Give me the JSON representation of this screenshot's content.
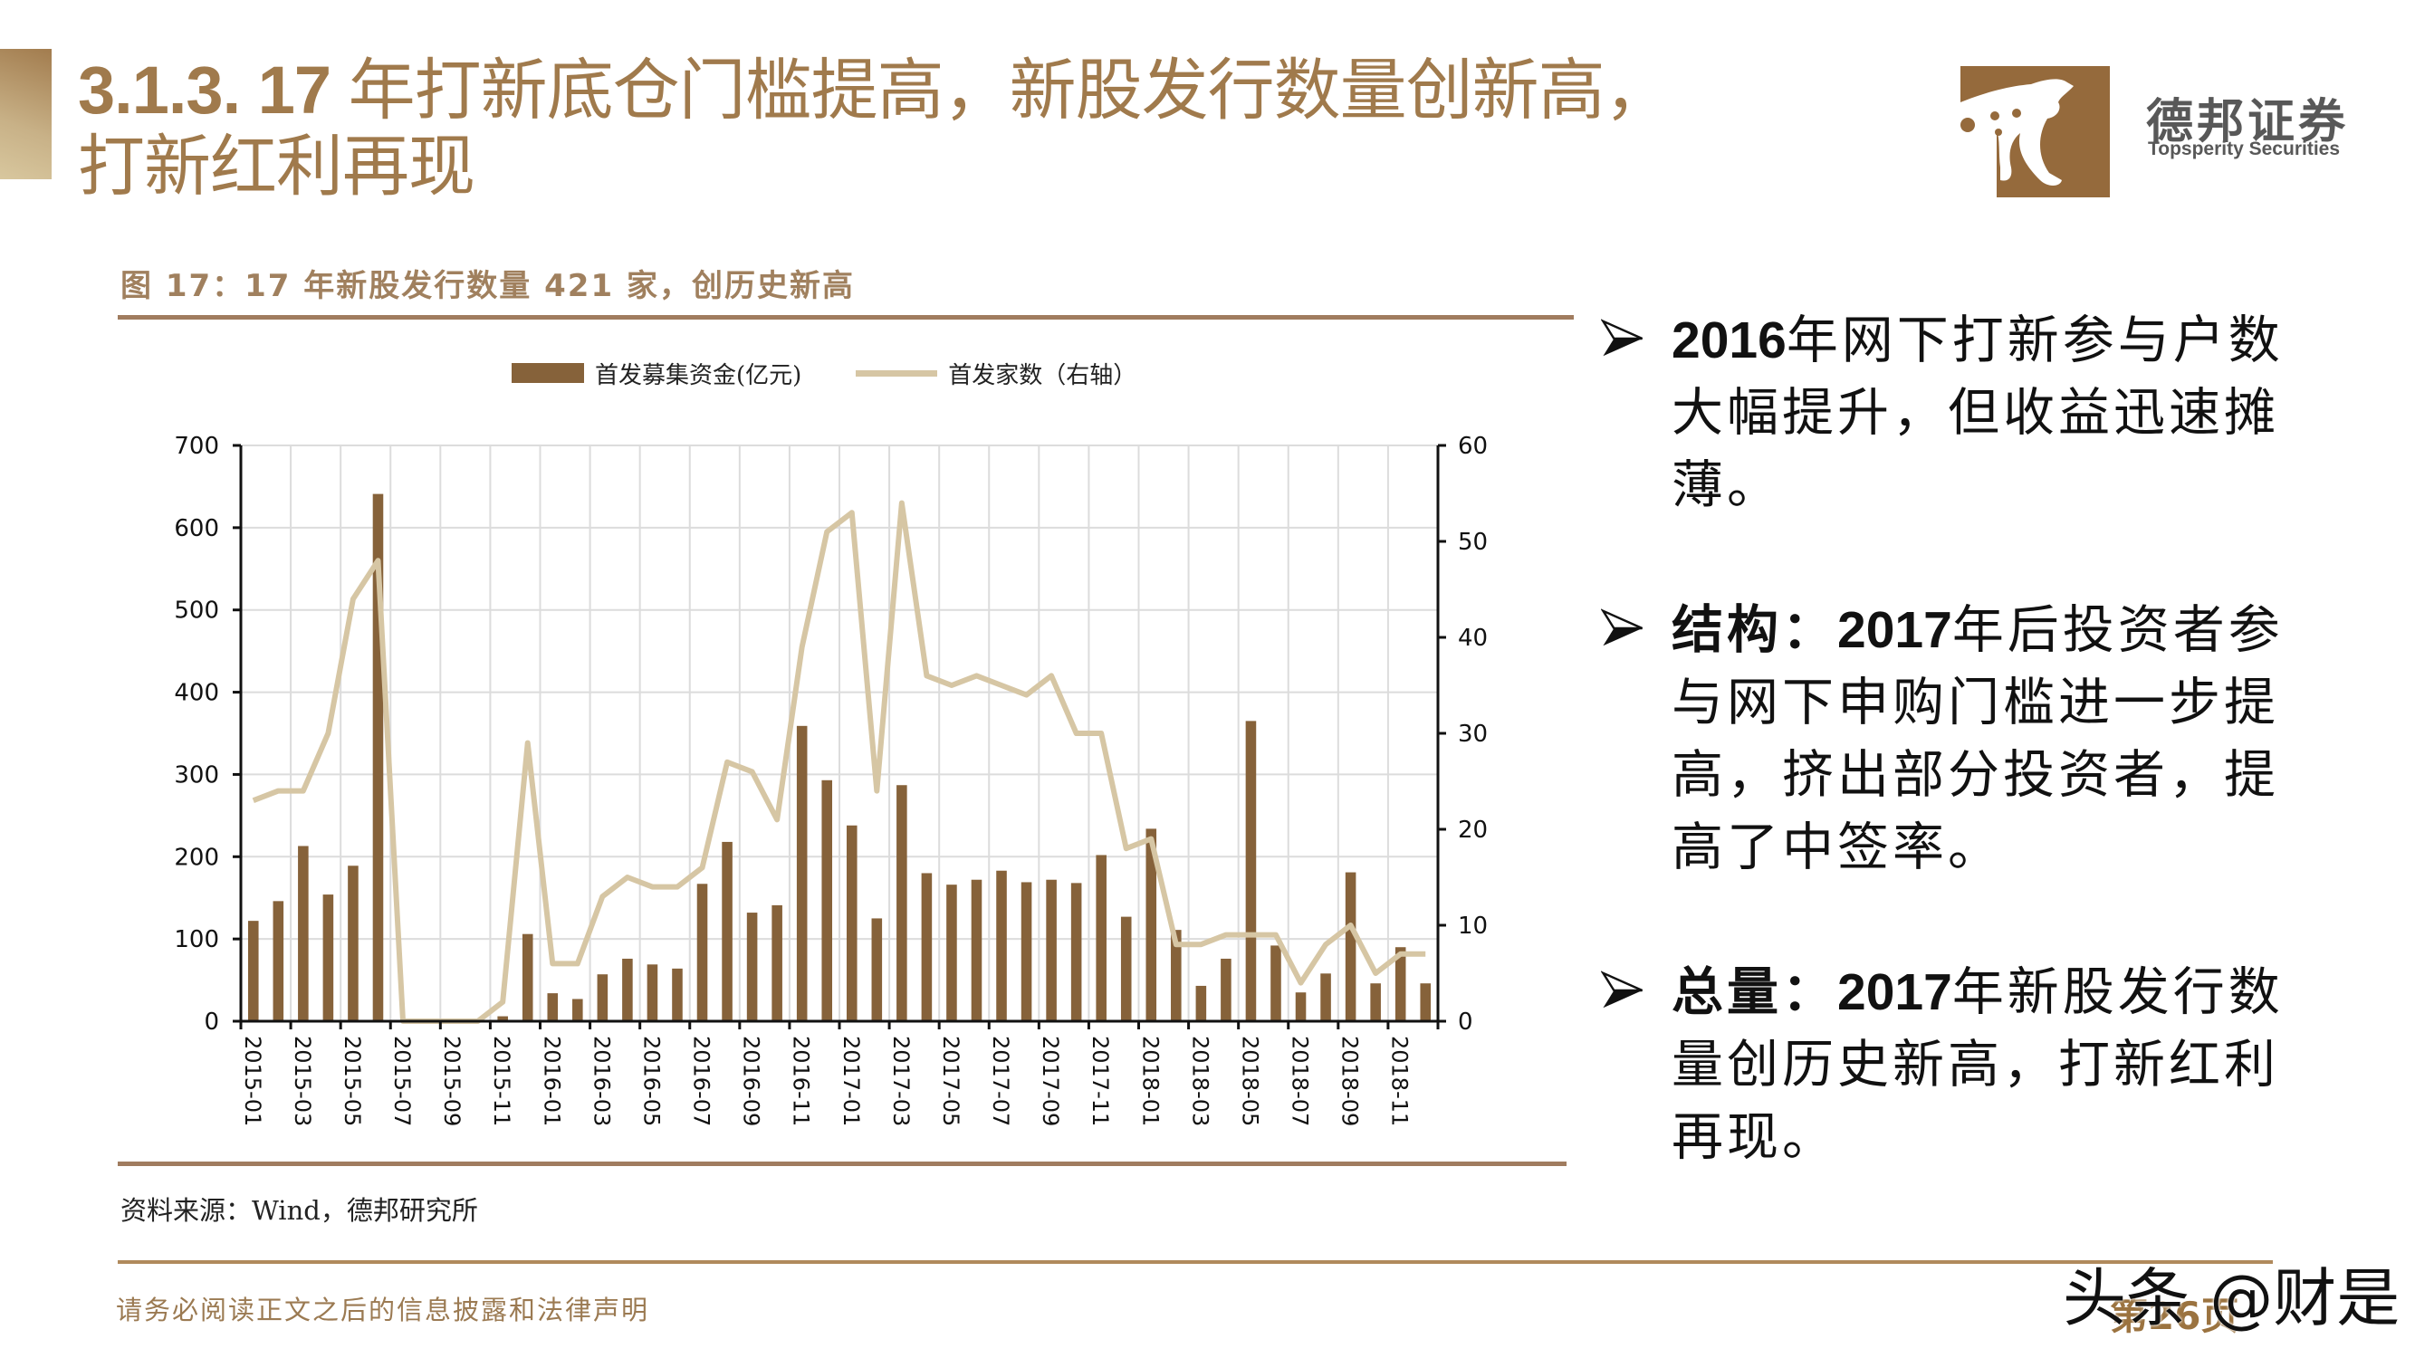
{
  "header": {
    "title_number": "3.1.3. 17",
    "title_line1": "年打新底仓门槛提高，新股发行数量创新高，",
    "title_line2": "打新红利再现",
    "brand_cn": "德邦证券",
    "brand_en": "Topsperity Securities",
    "accent_color": "#a07a4c"
  },
  "figure": {
    "title": "图 17：17 年新股发行数量 421 家，创历史新高",
    "source": "资料来源：Wind，德邦研究所"
  },
  "chart_data": {
    "type": "bar+line",
    "title": "17 年新股发行数量 421 家，创历史新高",
    "legend": [
      "首发募集资金(亿元)",
      "首发家数（右轴）"
    ],
    "legend_position": "top",
    "x": [
      "2015-01",
      "2015-02",
      "2015-03",
      "2015-04",
      "2015-05",
      "2015-06",
      "2015-07",
      "2015-08",
      "2015-09",
      "2015-10",
      "2015-11",
      "2015-12",
      "2016-01",
      "2016-02",
      "2016-03",
      "2016-04",
      "2016-05",
      "2016-06",
      "2016-07",
      "2016-08",
      "2016-09",
      "2016-10",
      "2016-11",
      "2016-12",
      "2017-01",
      "2017-02",
      "2017-03",
      "2017-04",
      "2017-05",
      "2017-06",
      "2017-07",
      "2017-08",
      "2017-09",
      "2017-10",
      "2017-11",
      "2017-12",
      "2018-01",
      "2018-02",
      "2018-03",
      "2018-04",
      "2018-05",
      "2018-06",
      "2018-07",
      "2018-08",
      "2018-09",
      "2018-10",
      "2018-11",
      "2018-12"
    ],
    "x_tick_labels": [
      "2015-01",
      "2015-03",
      "2015-05",
      "2015-07",
      "2015-09",
      "2015-11",
      "2016-01",
      "2016-03",
      "2016-05",
      "2016-07",
      "2016-09",
      "2016-11",
      "2017-01",
      "2017-03",
      "2017-05",
      "2017-07",
      "2017-09",
      "2017-11",
      "2018-01",
      "2018-03",
      "2018-05",
      "2018-07",
      "2018-09",
      "2018-11"
    ],
    "series": [
      {
        "name": "首发募集资金(亿元)",
        "type": "bar",
        "axis": "left",
        "color": "#86623a",
        "values": [
          122,
          146,
          213,
          154,
          189,
          641,
          0,
          0,
          0,
          0,
          6,
          106,
          34,
          27,
          57,
          76,
          69,
          64,
          167,
          218,
          132,
          141,
          359,
          293,
          238,
          125,
          287,
          180,
          166,
          172,
          183,
          169,
          172,
          168,
          202,
          127,
          234,
          111,
          43,
          76,
          365,
          92,
          35,
          58,
          181,
          46,
          90,
          46
        ]
      },
      {
        "name": "首发家数（右轴）",
        "type": "line",
        "axis": "right",
        "color": "#d6c6a4",
        "values": [
          23,
          24,
          24,
          30,
          44,
          48,
          0,
          0,
          0,
          0,
          2,
          29,
          6,
          6,
          13,
          15,
          14,
          14,
          16,
          27,
          26,
          21,
          39,
          51,
          53,
          24,
          54,
          36,
          35,
          36,
          35,
          34,
          36,
          30,
          30,
          18,
          19,
          8,
          8,
          9,
          9,
          9,
          4,
          8,
          10,
          5,
          7,
          7
        ]
      }
    ],
    "y_left": {
      "min": 0,
      "max": 700,
      "ticks": [
        0,
        100,
        200,
        300,
        400,
        500,
        600,
        700
      ]
    },
    "y_right": {
      "min": 0,
      "max": 60,
      "ticks": [
        0,
        10,
        20,
        30,
        40,
        50,
        60
      ]
    },
    "xlabel": "",
    "ylabel": "",
    "grid": true
  },
  "bullets": [
    {
      "lead": "2016",
      "text_line1": "年网下打新参与户数",
      "text_line2": "大幅提升，但收益迅速摊",
      "text_line3": "薄。"
    },
    {
      "lead_cn": "结构：",
      "lead": "2017",
      "text_line1": "年后投资者参",
      "text_line2": "与网下申购门槛进一步提",
      "text_line3": "高，挤出部分投资者，提",
      "text_line4": "高了中签率。"
    },
    {
      "lead_cn": "总量：",
      "lead": "2017",
      "text_line1": "年新股发行数",
      "text_line2": "量创历史新高，打新红利",
      "text_line3": "再现。"
    }
  ],
  "footer": {
    "disclaimer": "请务必阅读正文之后的信息披露和法律声明",
    "page": "第26页",
    "watermark": "头条 @财是"
  }
}
